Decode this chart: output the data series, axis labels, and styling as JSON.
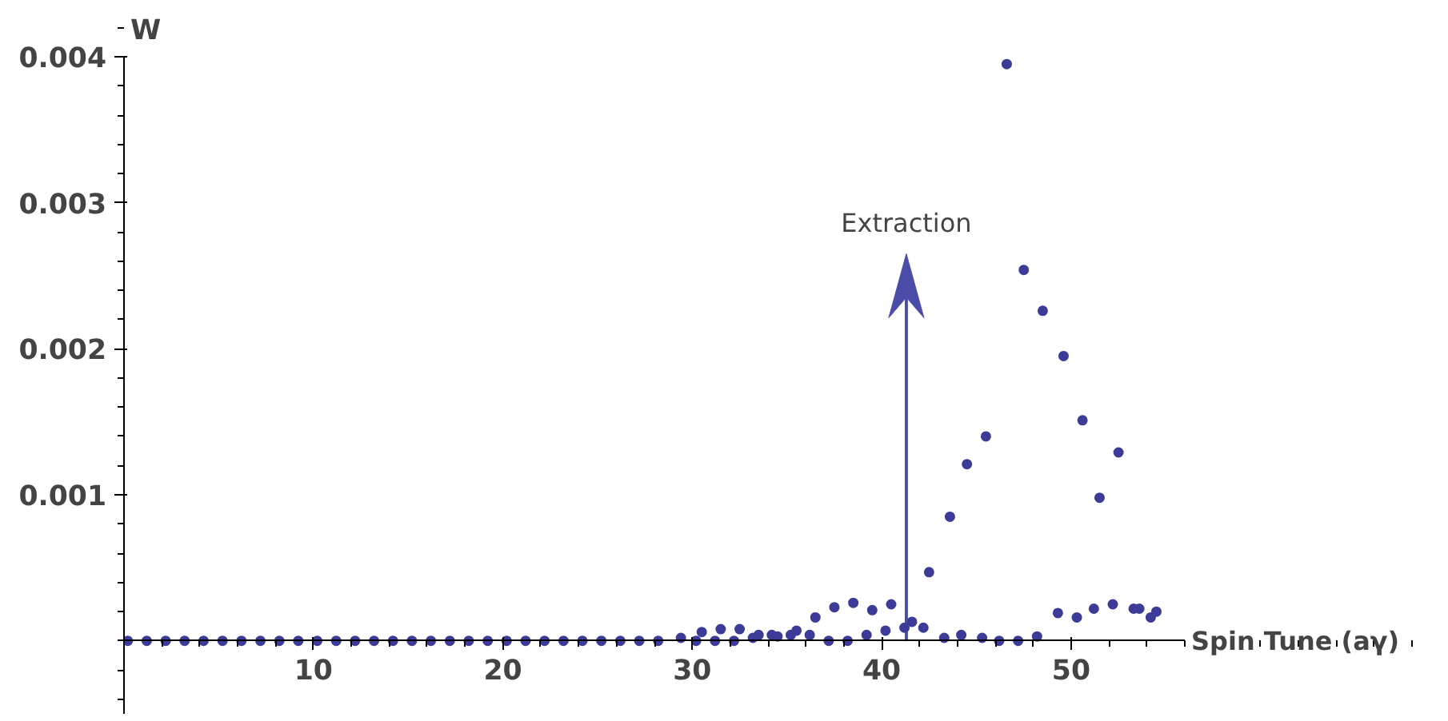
{
  "chart_data": {
    "type": "scatter",
    "xlabel": "Spin Tune (aγ)",
    "ylabel": "W",
    "xlim": [
      0,
      56
    ],
    "ylim": [
      -0.0005,
      0.004
    ],
    "xticks": [
      10,
      20,
      30,
      40,
      50
    ],
    "yticks": [
      {
        "value": 0.001,
        "label": "0.001"
      },
      {
        "value": 0.002,
        "label": "0.002"
      },
      {
        "value": 0.003,
        "label": "0.003"
      },
      {
        "value": 0.004,
        "label": "0.004"
      }
    ],
    "grid": false,
    "marker": "circle",
    "ref_lines": [
      {
        "axis": "x",
        "value": 41.3,
        "label": "Extraction",
        "color": "#4b4ba8"
      }
    ],
    "series": [
      {
        "color": "#3c3c98",
        "x": [
          0.2,
          1.2,
          2.2,
          3.2,
          4.2,
          5.2,
          6.2,
          7.2,
          8.2,
          9.2,
          10.2,
          11.2,
          12.2,
          13.2,
          14.2,
          15.2,
          16.2,
          17.2,
          18.2,
          19.2,
          20.2,
          21.2,
          22.2,
          23.2,
          24.2,
          25.2,
          26.2,
          27.2,
          28.2,
          29.4,
          30.2,
          30.5,
          31.2,
          31.5,
          32.2,
          32.5,
          33.2,
          33.5,
          34.2,
          34.5,
          35.2,
          35.5,
          36.2,
          36.5,
          37.2,
          37.5,
          38.2,
          38.5,
          39.2,
          39.5,
          40.2,
          40.5,
          41.2,
          41.6,
          42.2,
          42.5,
          43.3,
          43.6,
          44.2,
          44.5,
          45.3,
          45.5,
          46.2,
          46.6,
          47.2,
          47.5,
          48.2,
          48.5,
          49.3,
          49.6,
          50.3,
          50.6,
          51.2,
          51.5,
          52.2,
          52.5,
          53.3,
          53.6,
          54.2,
          54.5
        ],
        "values": [
          0,
          0,
          0,
          0,
          0,
          0,
          0,
          0,
          0,
          0,
          0,
          0,
          0,
          0,
          0,
          0,
          0,
          0,
          0,
          0,
          0,
          0,
          0,
          0,
          0,
          0,
          0,
          0,
          0,
          2e-05,
          0,
          6e-05,
          0,
          8e-05,
          0,
          8e-05,
          2e-05,
          4e-05,
          4e-05,
          3e-05,
          4e-05,
          7e-05,
          4e-05,
          0.00016,
          0,
          0.00023,
          0,
          0.00026,
          4e-05,
          0.00021,
          7e-05,
          0.00025,
          9e-05,
          0.00013,
          9e-05,
          0.00047,
          2e-05,
          0.00085,
          4e-05,
          0.00121,
          2e-05,
          0.0014,
          0,
          0.00395,
          0,
          0.00254,
          3e-05,
          0.00226,
          0.00019,
          0.00195,
          0.00016,
          0.00151,
          0.00022,
          0.00098,
          0.00025,
          0.00129,
          0.00022,
          0.00022,
          0.00016,
          0.0002
        ]
      }
    ]
  }
}
